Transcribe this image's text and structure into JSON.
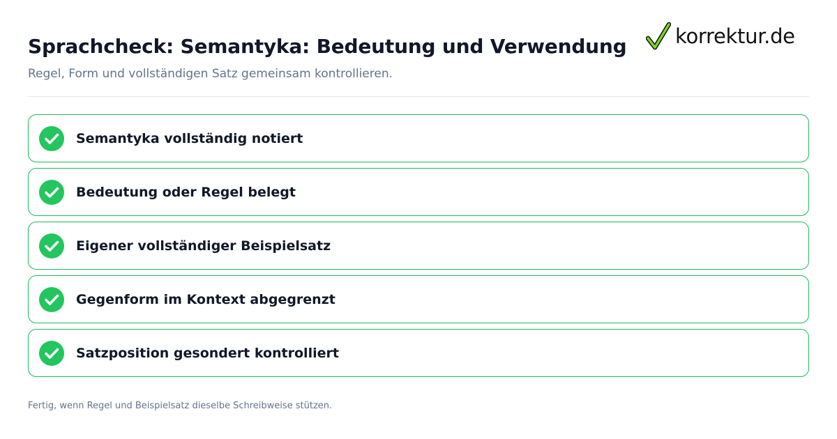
{
  "header": {
    "title": "Sprachcheck: Semantyka: Bedeutung und Verwendung",
    "subtitle": "Regel, Form und vollständigen Satz gemeinsam kontrollieren."
  },
  "logo": {
    "text": "korrektur.de",
    "icon": "checkmark-icon",
    "color": "#7ed321"
  },
  "checklist": {
    "accent_color": "#22b65e",
    "items": [
      {
        "label": "Semantyka vollständig notiert",
        "checked": true
      },
      {
        "label": "Bedeutung oder Regel belegt",
        "checked": true
      },
      {
        "label": "Eigener vollständiger Beispielsatz",
        "checked": true
      },
      {
        "label": "Gegenform im Kontext abgegrenzt",
        "checked": true
      },
      {
        "label": "Satzposition gesondert kontrolliert",
        "checked": true
      }
    ]
  },
  "footer": {
    "note": "Fertig, wenn Regel und Beispielsatz dieselbe Schreibweise stützen."
  }
}
